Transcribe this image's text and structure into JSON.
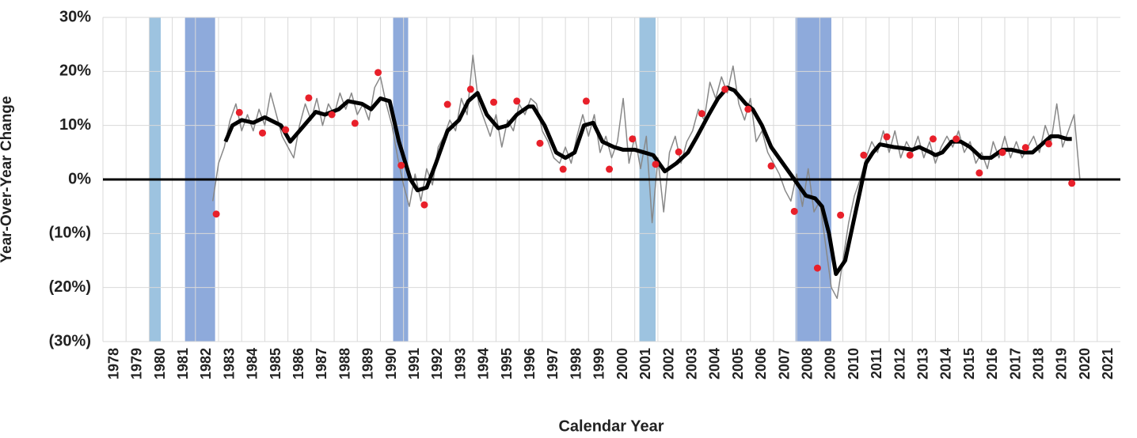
{
  "chart_data": {
    "type": "line",
    "x_label": "Calendar Year",
    "y_label": "Year-Over-Year Change",
    "xlim": [
      1978,
      2022
    ],
    "xticks": [
      1978,
      1979,
      1980,
      1981,
      1982,
      1983,
      1984,
      1985,
      1986,
      1987,
      1988,
      1989,
      1990,
      1991,
      1992,
      1993,
      1994,
      1995,
      1996,
      1997,
      1998,
      1999,
      2000,
      2001,
      2002,
      2003,
      2004,
      2005,
      2006,
      2007,
      2008,
      2009,
      2010,
      2011,
      2012,
      2013,
      2014,
      2015,
      2016,
      2017,
      2018,
      2019,
      2020,
      2021
    ],
    "ylim": [
      -30,
      30
    ],
    "yticks": [
      {
        "value": 30,
        "label": "30%"
      },
      {
        "value": 20,
        "label": "20%"
      },
      {
        "value": 10,
        "label": "10%"
      },
      {
        "value": 0,
        "label": "0%"
      },
      {
        "value": -10,
        "label": "(10%)"
      },
      {
        "value": -20,
        "label": "(20%)"
      },
      {
        "value": -30,
        "label": "(30%)"
      }
    ],
    "negative_label_color": "#e8202a",
    "grid": true,
    "shaded_ranges": [
      {
        "range": [
          1980.0,
          1980.5
        ],
        "color": "#9dc3e0"
      },
      {
        "range": [
          1981.55,
          1982.85
        ],
        "color": "#8eaadb"
      },
      {
        "range": [
          1990.55,
          1991.2
        ],
        "color": "#8eaadb"
      },
      {
        "range": [
          2001.2,
          2001.9
        ],
        "color": "#9dc3e0"
      },
      {
        "range": [
          2007.95,
          2009.5
        ],
        "color": "#8eaadb"
      }
    ],
    "series": [
      {
        "style": "line",
        "color": "#888888",
        "width": 1.5,
        "x": [
          1982.75,
          1983,
          1983.25,
          1983.5,
          1983.75,
          1984,
          1984.25,
          1984.5,
          1984.75,
          1985,
          1985.25,
          1985.5,
          1985.75,
          1986,
          1986.25,
          1986.5,
          1986.75,
          1987,
          1987.25,
          1987.5,
          1987.75,
          1988,
          1988.25,
          1988.5,
          1988.75,
          1989,
          1989.25,
          1989.5,
          1989.75,
          1990,
          1990.25,
          1990.5,
          1990.75,
          1991,
          1991.25,
          1991.5,
          1991.75,
          1992,
          1992.25,
          1992.5,
          1992.75,
          1993,
          1993.25,
          1993.5,
          1993.75,
          1994,
          1994.25,
          1994.5,
          1994.75,
          1995,
          1995.25,
          1995.5,
          1995.75,
          1996,
          1996.25,
          1996.5,
          1996.75,
          1997,
          1997.25,
          1997.5,
          1997.75,
          1998,
          1998.25,
          1998.5,
          1998.75,
          1999,
          1999.25,
          1999.5,
          1999.75,
          2000,
          2000.25,
          2000.5,
          2000.75,
          2001,
          2001.25,
          2001.5,
          2001.75,
          2002,
          2002.25,
          2002.5,
          2002.75,
          2003,
          2003.25,
          2003.5,
          2003.75,
          2004,
          2004.25,
          2004.5,
          2004.75,
          2005,
          2005.25,
          2005.5,
          2005.75,
          2006,
          2006.25,
          2006.5,
          2006.75,
          2007,
          2007.25,
          2007.5,
          2007.75,
          2008,
          2008.25,
          2008.5,
          2008.75,
          2009,
          2009.25,
          2009.5,
          2009.75,
          2010,
          2010.25,
          2010.5,
          2010.75,
          2011,
          2011.25,
          2011.5,
          2011.75,
          2012,
          2012.25,
          2012.5,
          2012.75,
          2013,
          2013.25,
          2013.5,
          2013.75,
          2014,
          2014.25,
          2014.5,
          2014.75,
          2015,
          2015.25,
          2015.5,
          2015.75,
          2016,
          2016.25,
          2016.5,
          2016.75,
          2017,
          2017.25,
          2017.5,
          2017.75,
          2018,
          2018.25,
          2018.5,
          2018.75,
          2019,
          2019.25,
          2019.5,
          2019.75,
          2020,
          2020.25
        ],
        "values": [
          -4,
          3,
          6,
          11,
          14,
          9,
          12,
          9,
          13,
          10,
          16,
          12,
          8,
          6,
          4,
          10,
          14,
          11,
          15,
          10,
          14,
          12,
          16,
          13,
          16,
          12,
          14,
          11,
          17,
          19,
          14,
          10,
          4,
          -1,
          -5,
          1,
          -4,
          2,
          -1,
          6,
          8,
          11,
          9,
          15,
          12,
          23,
          14,
          11,
          8,
          12,
          6,
          11,
          9,
          14,
          12,
          15,
          14,
          9,
          7,
          4,
          3,
          6,
          3,
          8,
          12,
          8,
          12,
          5,
          8,
          4,
          7,
          15,
          3,
          8,
          2,
          8,
          -8,
          4,
          -6,
          5,
          8,
          3,
          7,
          9,
          13,
          11,
          18,
          15,
          19,
          16,
          21,
          14,
          11,
          15,
          7,
          9,
          5,
          3,
          1,
          -2,
          -4,
          1,
          -5,
          2,
          -6,
          -4,
          -12,
          -20,
          -22,
          -15,
          -8,
          -3,
          0,
          4,
          7,
          5,
          9,
          5,
          9,
          4,
          7,
          5,
          8,
          4,
          7,
          3,
          6,
          8,
          6,
          9,
          5,
          7,
          3,
          5,
          2,
          7,
          4,
          8,
          4,
          7,
          4,
          6,
          8,
          5,
          10,
          7,
          14,
          6,
          9,
          12,
          0
        ]
      },
      {
        "style": "line",
        "color": "#000000",
        "width": 5,
        "x": [
          1983.3,
          1983.6,
          1984,
          1984.5,
          1985,
          1985.7,
          1986.1,
          1986.5,
          1987.2,
          1987.6,
          1988.2,
          1988.6,
          1989.2,
          1989.6,
          1990,
          1990.4,
          1990.8,
          1991.3,
          1991.6,
          1992,
          1992.4,
          1992.9,
          1993.4,
          1993.8,
          1994.2,
          1994.6,
          1995.1,
          1995.5,
          1995.9,
          1996.4,
          1996.6,
          1997.1,
          1997.6,
          1998,
          1998.4,
          1998.8,
          1999.2,
          1999.6,
          2000.1,
          2000.5,
          2001,
          2001.4,
          2001.8,
          2002.3,
          2002.8,
          2003.3,
          2003.7,
          2004.2,
          2004.6,
          2005,
          2005.3,
          2005.8,
          2006.1,
          2006.5,
          2006.9,
          2007.4,
          2007.9,
          2008.4,
          2008.8,
          2009.1,
          2009.4,
          2009.7,
          2010.1,
          2010.4,
          2010.7,
          2011,
          2011.3,
          2011.6,
          2012.2,
          2012.6,
          2013,
          2013.3,
          2013.8,
          2014,
          2014.3,
          2014.7,
          2015.1,
          2015.5,
          2016,
          2016.4,
          2016.9,
          2017.3,
          2017.8,
          2018.2,
          2018.6,
          2019,
          2019.3,
          2019.7,
          2019.9
        ],
        "values": [
          7,
          10,
          11,
          10.5,
          11.5,
          10,
          7,
          9,
          12.5,
          12,
          13,
          14.5,
          14,
          13,
          15,
          14.5,
          7,
          0,
          -2,
          -1.5,
          3,
          9,
          11,
          14.5,
          16,
          12,
          9.5,
          10,
          12,
          13.5,
          13.5,
          10,
          5,
          4,
          5,
          10,
          10.5,
          7,
          6,
          5.5,
          5.5,
          5,
          4.5,
          1.5,
          3,
          5,
          8,
          12,
          15,
          17,
          16.5,
          14,
          13,
          10,
          6,
          3,
          0,
          -3,
          -3.5,
          -5,
          -10,
          -17.5,
          -15,
          -9,
          -3,
          3,
          5,
          6.5,
          6,
          5.8,
          5.5,
          6,
          5,
          4.5,
          5,
          7,
          7,
          6,
          4,
          4,
          5.5,
          5.5,
          5,
          5,
          6.5,
          8,
          8,
          7.5,
          7.5
        ]
      },
      {
        "style": "markers",
        "color": "#e8202a",
        "x": [
          1982.9,
          1983.9,
          1984.9,
          1985.9,
          1986.9,
          1987.9,
          1988.9,
          1989.9,
          1990.9,
          1991.9,
          1992.9,
          1993.9,
          1994.9,
          1995.9,
          1996.9,
          1997.9,
          1998.9,
          1999.9,
          2000.9,
          2001.9,
          2002.9,
          2003.9,
          2004.9,
          2005.9,
          2006.9,
          2007.9,
          2008.9,
          2009.9,
          2010.9,
          2011.9,
          2012.9,
          2013.9,
          2014.9,
          2015.9,
          2016.9,
          2017.9,
          2018.9,
          2019.9
        ],
        "values": [
          -6.4,
          12.4,
          8.6,
          9.2,
          15.1,
          12,
          10.4,
          19.8,
          2.6,
          -4.7,
          13.9,
          16.7,
          14.3,
          14.5,
          6.7,
          1.9,
          14.5,
          1.9,
          7.5,
          2.8,
          5.1,
          12.2,
          16.7,
          13,
          2.5,
          -5.9,
          -16.4,
          -6.6,
          4.5,
          7.9,
          4.5,
          7.5,
          7.5,
          1.2,
          5,
          5.9,
          6.6,
          -0.7
        ]
      }
    ]
  }
}
